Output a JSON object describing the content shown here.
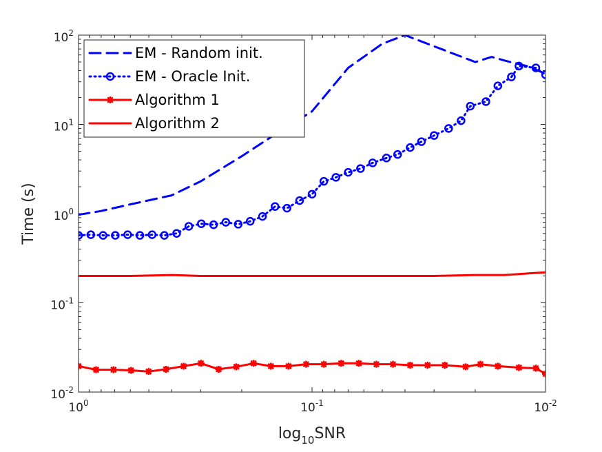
{
  "chart_data": {
    "type": "line",
    "title": "",
    "xlabel": {
      "base": "log",
      "sub": "10",
      "rest": "SNR"
    },
    "ylabel": "Time (s)",
    "xscale": "log",
    "yscale": "log",
    "x_reversed": true,
    "xlim": [
      1,
      0.01
    ],
    "ylim": [
      0.01,
      100
    ],
    "grid": false,
    "legend_position": "top-left",
    "x_ticks": [
      {
        "value": 1,
        "base": "10",
        "exp": "0"
      },
      {
        "value": 0.1,
        "base": "10",
        "exp": "-1"
      },
      {
        "value": 0.01,
        "base": "10",
        "exp": "-2"
      }
    ],
    "y_ticks": [
      {
        "value": 0.01,
        "base": "10",
        "exp": "-2"
      },
      {
        "value": 0.1,
        "base": "10",
        "exp": "-1"
      },
      {
        "value": 1,
        "base": "10",
        "exp": "0"
      },
      {
        "value": 10,
        "base": "10",
        "exp": "1"
      },
      {
        "value": 100,
        "base": "10",
        "exp": "2"
      }
    ],
    "series": [
      {
        "name": "EM - Random init.",
        "color": "#0000ff",
        "style": "dashed",
        "marker": "none",
        "x": [
          1.0,
          0.8,
          0.6,
          0.4,
          0.3,
          0.2,
          0.15,
          0.1,
          0.07,
          0.05,
          0.04,
          0.03,
          0.02,
          0.017,
          0.015,
          0.012,
          0.01
        ],
        "y": [
          0.97,
          1.07,
          1.27,
          1.6,
          2.3,
          4.4,
          7.2,
          14,
          43,
          80,
          100,
          75,
          50,
          57,
          52,
          45,
          37
        ]
      },
      {
        "name": "EM - Oracle Init.",
        "color": "#0000ff",
        "style": "dotted",
        "marker": "circle",
        "x": [
          1.0,
          0.886,
          0.785,
          0.696,
          0.616,
          0.546,
          0.484,
          0.429,
          0.38,
          0.337,
          0.298,
          0.264,
          0.234,
          0.207,
          0.184,
          0.163,
          0.144,
          0.128,
          0.113,
          0.1,
          0.089,
          0.079,
          0.07,
          0.062,
          0.055,
          0.048,
          0.043,
          0.038,
          0.034,
          0.03,
          0.026,
          0.023,
          0.021,
          0.018,
          0.016,
          0.014,
          0.013,
          0.011,
          0.01
        ],
        "y": [
          0.57,
          0.58,
          0.57,
          0.57,
          0.58,
          0.57,
          0.58,
          0.57,
          0.6,
          0.72,
          0.77,
          0.75,
          0.8,
          0.76,
          0.82,
          0.93,
          1.2,
          1.15,
          1.4,
          1.65,
          2.3,
          2.55,
          2.9,
          3.2,
          3.7,
          4.2,
          4.6,
          5.5,
          6.4,
          7.5,
          9.0,
          11,
          16,
          18,
          27,
          34,
          45,
          43,
          36
        ]
      },
      {
        "name": "Algorithm 1",
        "color": "#ff0000",
        "style": "solid",
        "marker": "star",
        "x": [
          1.0,
          0.841,
          0.708,
          0.596,
          0.501,
          0.422,
          0.355,
          0.299,
          0.251,
          0.211,
          0.178,
          0.15,
          0.126,
          0.106,
          0.089,
          0.075,
          0.063,
          0.053,
          0.045,
          0.038,
          0.032,
          0.027,
          0.022,
          0.019,
          0.016,
          0.013,
          0.011,
          0.01
        ],
        "y": [
          0.0195,
          0.0178,
          0.0178,
          0.0175,
          0.017,
          0.018,
          0.0195,
          0.021,
          0.018,
          0.0192,
          0.021,
          0.0195,
          0.0195,
          0.0205,
          0.0205,
          0.021,
          0.021,
          0.0205,
          0.0205,
          0.02,
          0.02,
          0.02,
          0.0192,
          0.0205,
          0.0195,
          0.0188,
          0.0185,
          0.016
        ]
      },
      {
        "name": "Algorithm 2",
        "color": "#ff0000",
        "style": "solid",
        "marker": "none",
        "x": [
          1.0,
          0.8,
          0.6,
          0.4,
          0.3,
          0.2,
          0.15,
          0.1,
          0.07,
          0.05,
          0.03,
          0.02,
          0.015,
          0.01
        ],
        "y": [
          0.2,
          0.2,
          0.2,
          0.205,
          0.2,
          0.2,
          0.2,
          0.2,
          0.2,
          0.2,
          0.2,
          0.205,
          0.205,
          0.22
        ]
      }
    ]
  }
}
